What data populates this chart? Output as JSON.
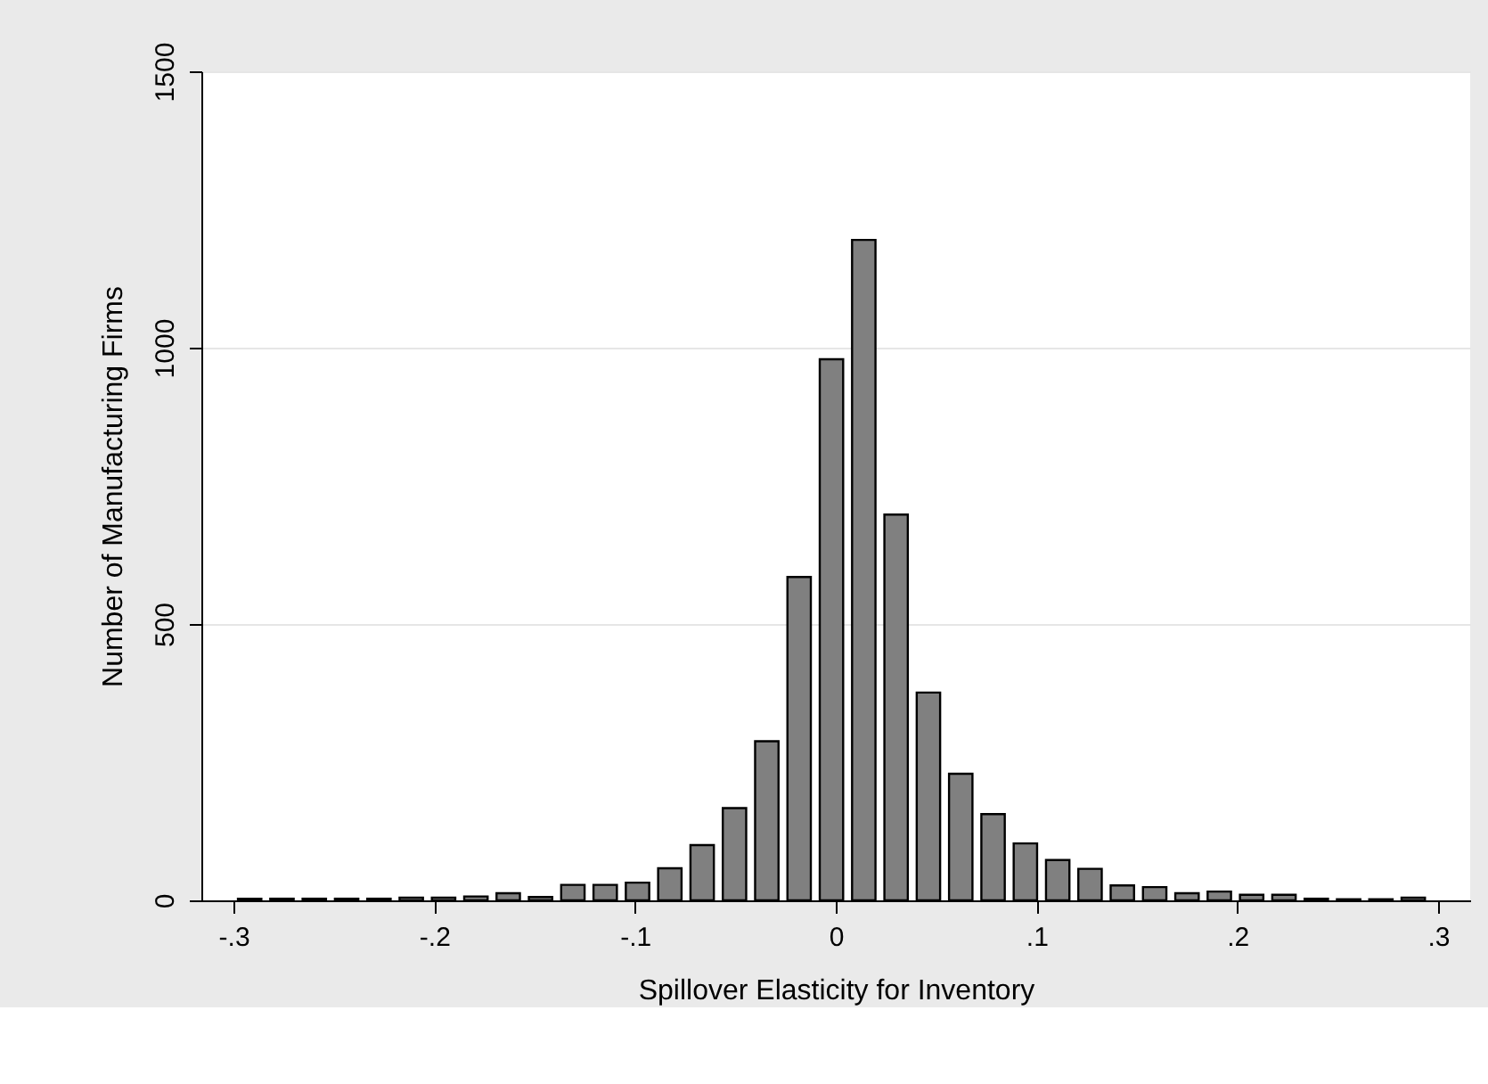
{
  "chart_data": {
    "type": "histogram",
    "xlabel": "Spillover Elasticity for Inventory",
    "ylabel": "Number of Manufacturing Firms",
    "bins": [
      -0.3,
      -0.2839,
      -0.2678,
      -0.2517,
      -0.2356,
      -0.2195,
      -0.2034,
      -0.1873,
      -0.1712,
      -0.1551,
      -0.139,
      -0.1229,
      -0.1068,
      -0.0907,
      -0.0746,
      -0.0585,
      -0.0424,
      -0.0263,
      -0.0102,
      0.0059,
      0.022,
      0.0381,
      0.0542,
      0.0703,
      0.0864,
      0.1025,
      0.1186,
      0.1347,
      0.1508,
      0.1669,
      0.183,
      0.1991,
      0.2152,
      0.2313,
      0.2474,
      0.2635,
      0.2796,
      0.2957
    ],
    "values": [
      3,
      3,
      3,
      3,
      3,
      5,
      5,
      7,
      13,
      6,
      28,
      28,
      32,
      58,
      100,
      167,
      288,
      585,
      979,
      1195,
      698,
      376,
      229,
      156,
      103,
      73,
      57,
      27,
      24,
      13,
      16,
      10,
      10,
      3,
      2,
      2,
      5
    ],
    "color": "#808080",
    "xlim": [
      -0.316,
      0.316
    ],
    "xticks": [
      {
        "value": -0.3,
        "label": "-.3"
      },
      {
        "value": -0.2,
        "label": "-.2"
      },
      {
        "value": -0.1,
        "label": "-.1"
      },
      0,
      {
        "value": 0.1,
        "label": ".1"
      },
      {
        "value": 0.2,
        "label": ".2"
      },
      {
        "value": 0.3,
        "label": ".3"
      }
    ],
    "ylim": [
      0,
      1500
    ],
    "yticks": [
      0,
      500,
      1000,
      1500
    ],
    "grid": "y"
  }
}
